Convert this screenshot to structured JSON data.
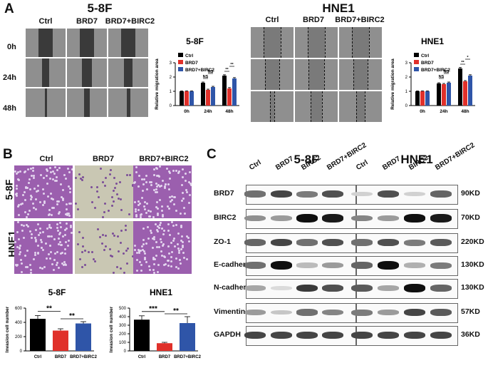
{
  "panel_letters": {
    "a": "A",
    "b": "B",
    "c": "C"
  },
  "panel_a": {
    "left": {
      "title": "5-8F",
      "columns": [
        "Ctrl",
        "BRD7",
        "BRD7+BIRC2"
      ],
      "rows": [
        "0h",
        "24h",
        "48h"
      ]
    },
    "right": {
      "title": "HNE1",
      "columns": [
        "Ctrl",
        "BRD7",
        "BRD7+BIRC2"
      ]
    }
  },
  "panel_b": {
    "columns": [
      "Ctrl",
      "BRD7",
      "BRD7+BIRC2"
    ],
    "rows": [
      "5-8F",
      "HNE1"
    ]
  },
  "panel_c": {
    "cell_lines": [
      "5-8F",
      "HNE1"
    ],
    "lanes": [
      "Ctrl",
      "BRD7",
      "BIRC2",
      "BRD7+BIRC2"
    ],
    "proteins": [
      {
        "name": "BRD7",
        "kd": "90KD"
      },
      {
        "name": "BIRC2",
        "kd": "70KD"
      },
      {
        "name": "ZO-1",
        "kd": "220KD"
      },
      {
        "name": "E-cadherin",
        "kd": "130KD"
      },
      {
        "name": "N-cadherin",
        "kd": "130KD"
      },
      {
        "name": "Vimentin",
        "kd": "57KD"
      },
      {
        "name": "GAPDH",
        "kd": "36KD"
      }
    ],
    "intensity_5_8F": [
      [
        0.55,
        0.75,
        0.5,
        0.7
      ],
      [
        0.4,
        0.35,
        1.0,
        0.95
      ],
      [
        0.6,
        0.75,
        0.55,
        0.7
      ],
      [
        0.55,
        1.0,
        0.2,
        0.35
      ],
      [
        0.3,
        0.05,
        0.8,
        0.7
      ],
      [
        0.35,
        0.15,
        0.55,
        0.45
      ],
      [
        0.75,
        0.75,
        0.75,
        0.75
      ]
    ],
    "intensity_HNE1": [
      [
        0.1,
        0.7,
        0.1,
        0.6
      ],
      [
        0.45,
        0.35,
        1.0,
        0.95
      ],
      [
        0.55,
        0.7,
        0.5,
        0.65
      ],
      [
        0.6,
        1.0,
        0.25,
        0.5
      ],
      [
        0.65,
        0.3,
        1.0,
        0.6
      ],
      [
        0.5,
        0.35,
        0.75,
        0.65
      ],
      [
        0.75,
        0.75,
        0.75,
        0.75
      ]
    ]
  },
  "chart_data": [
    {
      "type": "bar",
      "title": "5-8F",
      "ylabel": "Relative migration area",
      "categories": [
        "0h",
        "24h",
        "48h"
      ],
      "ylim": [
        0,
        3
      ],
      "yticks": [
        "0",
        "1",
        "2",
        "3"
      ],
      "series": [
        {
          "name": "Ctrl",
          "color": "#000000",
          "values": [
            1.0,
            1.6,
            2.1
          ],
          "err": [
            0.03,
            0.05,
            0.06
          ]
        },
        {
          "name": "BRD7",
          "color": "#e0302a",
          "values": [
            1.0,
            1.1,
            1.2
          ],
          "err": [
            0.03,
            0.05,
            0.06
          ]
        },
        {
          "name": "BRD7+BIRC2",
          "color": "#2f55a8",
          "values": [
            1.0,
            1.3,
            1.9
          ],
          "err": [
            0.03,
            0.05,
            0.06
          ]
        }
      ],
      "annotations": [
        "NS",
        "NS",
        "**",
        "**"
      ]
    },
    {
      "type": "bar",
      "title": "HNE1",
      "ylabel": "Relative migration area",
      "categories": [
        "0h",
        "24h",
        "48h"
      ],
      "ylim": [
        0,
        3
      ],
      "yticks": [
        "0",
        "1",
        "2",
        "3"
      ],
      "series": [
        {
          "name": "Ctrl",
          "color": "#000000",
          "values": [
            1.0,
            1.55,
            2.6
          ],
          "err": [
            0.03,
            0.05,
            0.07
          ]
        },
        {
          "name": "BRD7",
          "color": "#e0302a",
          "values": [
            1.0,
            1.5,
            1.7
          ],
          "err": [
            0.03,
            0.05,
            0.05
          ]
        },
        {
          "name": "BRD7+BIRC2",
          "color": "#2f55a8",
          "values": [
            1.0,
            1.6,
            2.1
          ],
          "err": [
            0.03,
            0.05,
            0.06
          ]
        }
      ],
      "annotations": [
        "NS",
        "NS",
        "**",
        "*"
      ]
    },
    {
      "type": "bar",
      "title": "5-8F",
      "ylabel": "Invasion cell number",
      "categories": [
        "Ctrl",
        "BRD7",
        "BRD7+BIRC2"
      ],
      "ylim": [
        0,
        600
      ],
      "yticks": [
        "0",
        "200",
        "400",
        "600"
      ],
      "colors": [
        "#000000",
        "#e0302a",
        "#2f55a8"
      ],
      "values": [
        450,
        285,
        385
      ],
      "err": [
        45,
        25,
        25
      ],
      "annotations": [
        "**",
        "**"
      ]
    },
    {
      "type": "bar",
      "title": "HNE1",
      "ylabel": "Invasion cell number",
      "categories": [
        "Ctrl",
        "BRD7",
        "BRD7+BIRC2"
      ],
      "ylim": [
        0,
        500
      ],
      "yticks": [
        "0",
        "100",
        "200",
        "300",
        "400",
        "500"
      ],
      "colors": [
        "#000000",
        "#e0302a",
        "#2f55a8"
      ],
      "values": [
        365,
        90,
        325
      ],
      "err": [
        45,
        10,
        75
      ],
      "annotations": [
        "***",
        "**"
      ]
    }
  ]
}
